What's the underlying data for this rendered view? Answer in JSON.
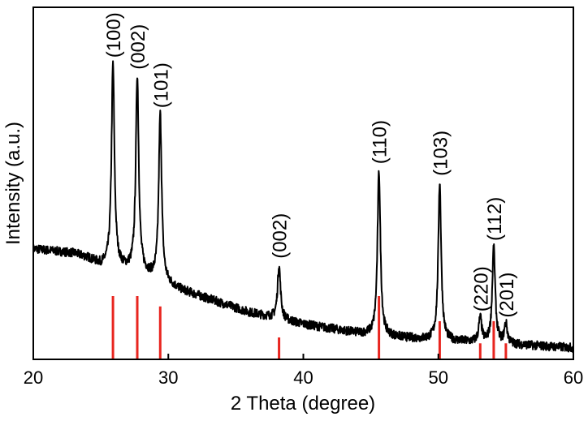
{
  "chart_data": {
    "type": "line",
    "xlabel": "2 Theta (degree)",
    "ylabel": "Intensity (a.u.)",
    "xlim": [
      20,
      60
    ],
    "ylim": [
      0,
      1
    ],
    "x_ticks": [
      20,
      30,
      40,
      50,
      60
    ],
    "y_ticks_shown": false,
    "grid": false,
    "legend": "none",
    "colors": {
      "pattern": "#000000",
      "reference": "#e8251f"
    },
    "series": [
      {
        "baseline": [
          [
            20.0,
            0.355
          ],
          [
            21.0,
            0.35
          ],
          [
            22.0,
            0.345
          ],
          [
            23.0,
            0.34
          ],
          [
            24.0,
            0.325
          ],
          [
            25.0,
            0.3
          ],
          [
            26.5,
            0.29
          ],
          [
            28.0,
            0.275
          ],
          [
            30.0,
            0.235
          ],
          [
            31.0,
            0.215
          ],
          [
            32.0,
            0.2
          ],
          [
            34.0,
            0.17
          ],
          [
            36.0,
            0.14
          ],
          [
            38.0,
            0.12
          ],
          [
            40.0,
            0.1
          ],
          [
            42.0,
            0.085
          ],
          [
            44.0,
            0.07
          ],
          [
            46.0,
            0.06
          ],
          [
            48.0,
            0.052
          ],
          [
            50.0,
            0.045
          ],
          [
            52.0,
            0.04
          ],
          [
            54.0,
            0.035
          ],
          [
            56.0,
            0.03
          ],
          [
            58.0,
            0.025
          ],
          [
            60.0,
            0.02
          ]
        ],
        "peaks": [
          {
            "position": 25.9,
            "height": 0.98,
            "label": "(100)"
          },
          {
            "position": 27.7,
            "height": 0.94,
            "label": "(002)"
          },
          {
            "position": 29.4,
            "height": 0.81,
            "label": "(101)"
          },
          {
            "position": 38.2,
            "height": 0.3,
            "label": "(002)"
          },
          {
            "position": 45.6,
            "height": 0.62,
            "label": "(110)"
          },
          {
            "position": 50.1,
            "height": 0.58,
            "label": "(103)"
          },
          {
            "position": 53.1,
            "height": 0.12,
            "label": "(220)"
          },
          {
            "position": 54.1,
            "height": 0.36,
            "label": "(112)"
          },
          {
            "position": 55.0,
            "height": 0.1,
            "label": "(201)"
          }
        ]
      }
    ],
    "reference_lines": [
      {
        "position": 25.9,
        "height": 0.195
      },
      {
        "position": 27.7,
        "height": 0.195
      },
      {
        "position": 29.4,
        "height": 0.16
      },
      {
        "position": 38.2,
        "height": 0.055
      },
      {
        "position": 45.6,
        "height": 0.195
      },
      {
        "position": 50.1,
        "height": 0.11
      },
      {
        "position": 53.1,
        "height": 0.035
      },
      {
        "position": 54.1,
        "height": 0.11
      },
      {
        "position": 55.0,
        "height": 0.035
      }
    ]
  }
}
